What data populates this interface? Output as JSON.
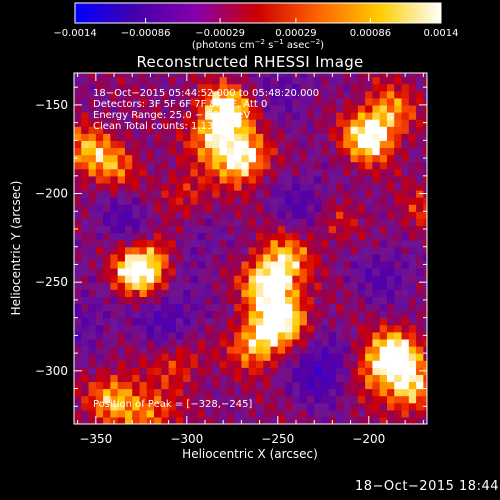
{
  "chart_data": {
    "type": "heatmap",
    "title": "Reconstructed RHESSI Image",
    "xlabel": "Heliocentric X (arcsec)",
    "ylabel": "Heliocentric Y (arcsec)",
    "xlim": [
      -362,
      -168
    ],
    "ylim": [
      -330,
      -132
    ],
    "x_ticks": [
      -350,
      -300,
      -250,
      -200
    ],
    "x_tick_labels": [
      "−350",
      "−300",
      "−250",
      "−200"
    ],
    "y_ticks": [
      -150,
      -200,
      -250,
      -300
    ],
    "y_tick_labels": [
      "−150",
      "−200",
      "−250",
      "−300"
    ],
    "colorbar": {
      "range": [
        -0.0014,
        0.0014
      ],
      "ticks": [
        -0.0014,
        -0.00086,
        -0.00029,
        0.00029,
        0.00086,
        0.0014
      ],
      "tick_labels": [
        "−0.0014",
        "−0.00086",
        "−0.00029",
        "0.00029",
        "0.00086",
        "0.0014"
      ],
      "unit_parts": [
        "(photons cm",
        "−2",
        " s",
        "−1",
        " asec",
        "−2",
        ")"
      ],
      "colors": [
        "#0000ff",
        "#4400aa",
        "#8800aa",
        "#cc0000",
        "#ff6600",
        "#ffcc00",
        "#ffffff"
      ]
    },
    "annotations": [
      "18−Oct−2015 05:44:52.000 to 05:48:20.000",
      "Detectors: 3F 5F 6F 7F 8F 9F, Att 0",
      "Energy Range: 25.0 − 50.0 keV",
      "Clean     Total counts: 1.13E+04"
    ],
    "peak_label": "Position of Peak = [−328,−245]",
    "peak": [
      -328,
      -245
    ],
    "grid": false,
    "sources": [
      {
        "x": -327,
        "y": -244,
        "amp": 1.0
      },
      {
        "x": -313,
        "y": -232,
        "amp": 0.45
      },
      {
        "x": -278,
        "y": -152,
        "amp": 0.85
      },
      {
        "x": -270,
        "y": -180,
        "amp": 0.9
      },
      {
        "x": -285,
        "y": -168,
        "amp": 0.6
      },
      {
        "x": -200,
        "y": -168,
        "amp": 0.95
      },
      {
        "x": -188,
        "y": -152,
        "amp": 0.5
      },
      {
        "x": -255,
        "y": -250,
        "amp": 0.9
      },
      {
        "x": -248,
        "y": -270,
        "amp": 0.95
      },
      {
        "x": -262,
        "y": -285,
        "amp": 0.7
      },
      {
        "x": -245,
        "y": -235,
        "amp": 0.55
      },
      {
        "x": -185,
        "y": -290,
        "amp": 0.9
      },
      {
        "x": -178,
        "y": -310,
        "amp": 0.7
      },
      {
        "x": -200,
        "y": -300,
        "amp": 0.45
      },
      {
        "x": -340,
        "y": -315,
        "amp": 0.65
      },
      {
        "x": -320,
        "y": -325,
        "amp": 0.5
      },
      {
        "x": -355,
        "y": -175,
        "amp": 0.55
      },
      {
        "x": -340,
        "y": -185,
        "amp": 0.45
      },
      {
        "x": -300,
        "y": -200,
        "amp": 0.35
      },
      {
        "x": -220,
        "y": -215,
        "amp": 0.3
      },
      {
        "x": -305,
        "y": -295,
        "amp": 0.4
      },
      {
        "x": -170,
        "y": -210,
        "amp": 0.3
      }
    ],
    "troughs": [
      {
        "x": -225,
        "y": -300,
        "amp": 0.6
      },
      {
        "x": -310,
        "y": -270,
        "amp": 0.45
      },
      {
        "x": -190,
        "y": -245,
        "amp": 0.35
      },
      {
        "x": -300,
        "y": -230,
        "amp": 0.35
      },
      {
        "x": -235,
        "y": -205,
        "amp": 0.4
      },
      {
        "x": -335,
        "y": -215,
        "amp": 0.35
      },
      {
        "x": -245,
        "y": -140,
        "amp": 0.3
      },
      {
        "x": -355,
        "y": -270,
        "amp": 0.3
      }
    ]
  },
  "footer": {
    "timestamp": "18−Oct−2015 18:44"
  }
}
